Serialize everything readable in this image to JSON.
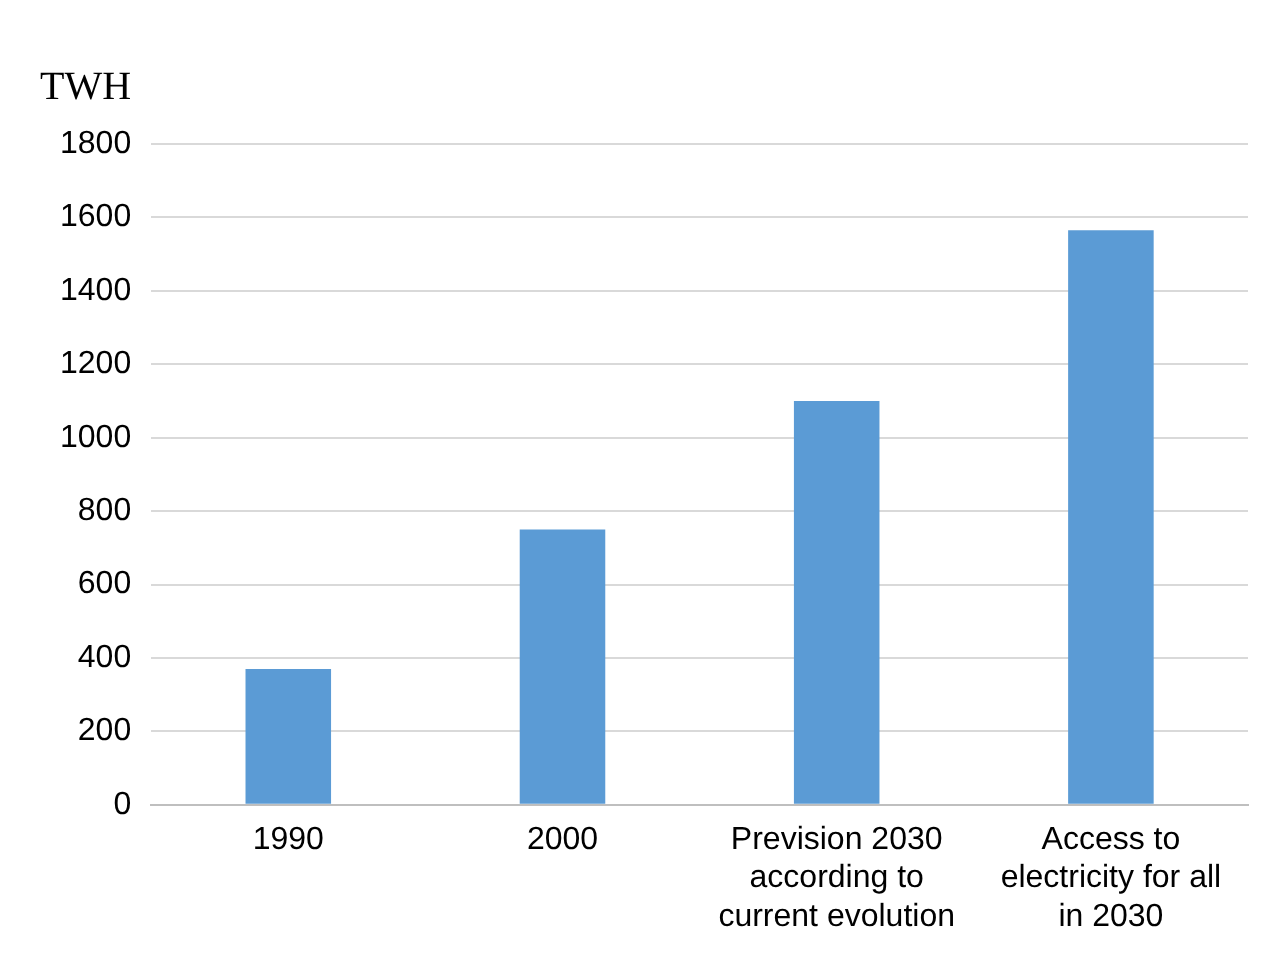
{
  "chart_data": {
    "type": "bar",
    "ylabel": "TWH",
    "categories": [
      "1990",
      "2000",
      "Prevision 2030 according to current evolution",
      "Access to electricity for all in 2030"
    ],
    "values": [
      370,
      750,
      1100,
      1565
    ],
    "color": "#5b9bd5",
    "ylim": [
      0,
      1800
    ],
    "yticks": [
      0,
      200,
      400,
      600,
      800,
      1000,
      1200,
      1400,
      1600,
      1800
    ],
    "grid": "y",
    "legend": false
  }
}
